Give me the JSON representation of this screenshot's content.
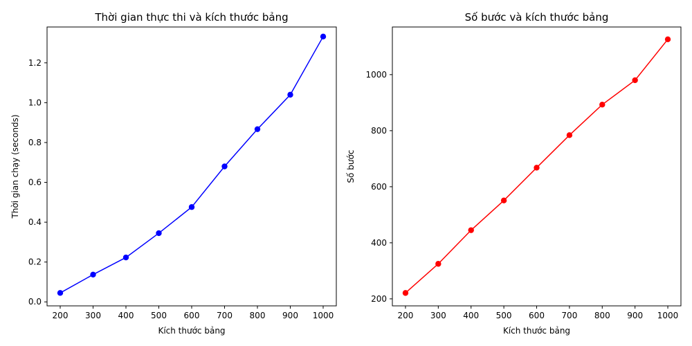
{
  "chart_data": [
    {
      "type": "line",
      "title": "Thời gian thực thi và kích thước bảng",
      "xlabel": "Kích thước bảng",
      "ylabel": "Thời gian chạy (seconds)",
      "x": [
        200,
        300,
        400,
        500,
        600,
        700,
        800,
        900,
        1000
      ],
      "xticks": [
        200,
        300,
        400,
        500,
        600,
        700,
        800,
        900,
        1000
      ],
      "yticks": [
        0.0,
        0.2,
        0.4,
        0.6,
        0.8,
        1.0,
        1.2
      ],
      "ytick_labels": [
        "0.0",
        "0.2",
        "0.4",
        "0.6",
        "0.8",
        "1.0",
        "1.2"
      ],
      "xlim": [
        160,
        1040
      ],
      "ylim": [
        -0.02,
        1.38
      ],
      "grid": false,
      "series": [
        {
          "color": "#0000ff",
          "marker": "circle",
          "values": [
            0.045,
            0.137,
            0.223,
            0.345,
            0.476,
            0.68,
            0.867,
            1.04,
            1.332
          ]
        }
      ]
    },
    {
      "type": "line",
      "title": "Số bước và kích thước bảng",
      "xlabel": "Kích thước bảng",
      "ylabel": "Số bước",
      "x": [
        200,
        300,
        400,
        500,
        600,
        700,
        800,
        900,
        1000
      ],
      "xticks": [
        200,
        300,
        400,
        500,
        600,
        700,
        800,
        900,
        1000
      ],
      "yticks": [
        200,
        400,
        600,
        800,
        1000
      ],
      "ytick_labels": [
        "200",
        "400",
        "600",
        "800",
        "1000"
      ],
      "xlim": [
        160,
        1040
      ],
      "ylim": [
        175,
        1170
      ],
      "grid": false,
      "series": [
        {
          "color": "#ff0000",
          "marker": "circle",
          "values": [
            221,
            325,
            445,
            551,
            668,
            784,
            893,
            980,
            1126
          ]
        }
      ]
    }
  ]
}
